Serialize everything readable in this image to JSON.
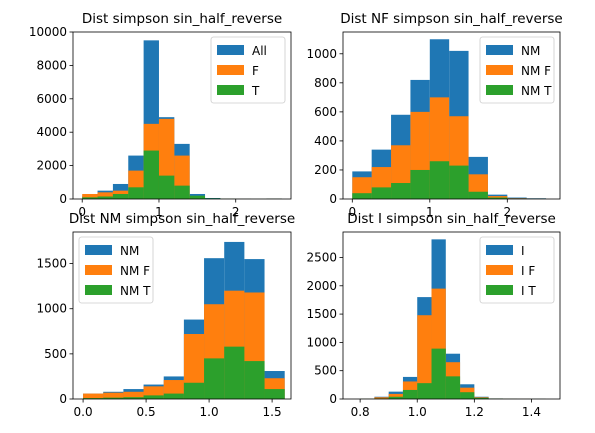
{
  "chart_data": [
    {
      "type": "bar",
      "title": "Dist simpson sin_half_reverse",
      "xlim": [
        -0.12,
        2.72
      ],
      "ylim": [
        0,
        10000
      ],
      "xticks": [
        0,
        1,
        2
      ],
      "xtick_labels": [
        "0",
        "1",
        "2"
      ],
      "yticks": [
        0,
        2000,
        4000,
        6000,
        8000,
        10000
      ],
      "ytick_labels": [
        "0",
        "2000",
        "4000",
        "6000",
        "8000",
        "10000"
      ],
      "bin_edges": [
        0,
        0.2,
        0.4,
        0.6,
        0.8,
        1.0,
        1.2,
        1.4,
        1.6,
        1.8,
        2.0,
        2.2,
        2.4,
        2.6
      ],
      "legend_position": "top-right",
      "series": [
        {
          "name": "All",
          "color": "#1f77b4",
          "values": [
            200,
            500,
            900,
            2600,
            9500,
            4900,
            3300,
            300,
            60,
            20,
            10,
            5,
            30
          ]
        },
        {
          "name": "F",
          "color": "#ff7f0e",
          "values": [
            300,
            400,
            500,
            1700,
            4500,
            4800,
            2600,
            100,
            30,
            10,
            5,
            3,
            10
          ]
        },
        {
          "name": "T",
          "color": "#2ca02c",
          "values": [
            100,
            150,
            300,
            700,
            2900,
            1400,
            800,
            200,
            40,
            10,
            5,
            2,
            10
          ]
        }
      ]
    },
    {
      "type": "bar",
      "title": "Dist NF simpson sin_half_reverse",
      "xlim": [
        -0.12,
        2.68
      ],
      "ylim": [
        0,
        1150
      ],
      "xticks": [
        0,
        1,
        2
      ],
      "xtick_labels": [
        "0",
        "1",
        "2"
      ],
      "yticks": [
        0,
        200,
        400,
        600,
        800,
        1000
      ],
      "ytick_labels": [
        "0",
        "200",
        "400",
        "600",
        "800",
        "1000"
      ],
      "bin_edges": [
        0,
        0.25,
        0.5,
        0.75,
        1.0,
        1.25,
        1.5,
        1.75,
        2.0,
        2.25,
        2.5
      ],
      "legend_position": "top-right",
      "series": [
        {
          "name": "NM",
          "color": "#1f77b4",
          "values": [
            190,
            340,
            580,
            820,
            1100,
            1020,
            290,
            30,
            10,
            5
          ]
        },
        {
          "name": "NM F",
          "color": "#ff7f0e",
          "values": [
            150,
            220,
            370,
            600,
            700,
            570,
            170,
            20,
            5,
            2
          ]
        },
        {
          "name": "NM T",
          "color": "#2ca02c",
          "values": [
            40,
            80,
            110,
            200,
            260,
            230,
            50,
            10,
            2,
            1
          ]
        }
      ]
    },
    {
      "type": "bar",
      "title": "Dist NM simpson sin_half_reverse",
      "xlim": [
        -0.08,
        1.65
      ],
      "ylim": [
        0,
        1850
      ],
      "xticks": [
        0,
        0.5,
        1.0,
        1.5
      ],
      "xtick_labels": [
        "0.0",
        "0.5",
        "1.0",
        "1.5"
      ],
      "yticks": [
        0,
        500,
        1000,
        1500
      ],
      "ytick_labels": [
        "0",
        "500",
        "1000",
        "1500"
      ],
      "bin_edges": [
        0,
        0.16,
        0.32,
        0.48,
        0.64,
        0.8,
        0.96,
        1.12,
        1.28,
        1.44,
        1.6
      ],
      "legend_position": "top-left",
      "series": [
        {
          "name": "NM",
          "color": "#1f77b4",
          "values": [
            60,
            80,
            110,
            160,
            250,
            880,
            1560,
            1740,
            1550,
            310
          ]
        },
        {
          "name": "NM F",
          "color": "#ff7f0e",
          "values": [
            60,
            70,
            80,
            140,
            210,
            720,
            1050,
            1200,
            1180,
            230
          ]
        },
        {
          "name": "NM T",
          "color": "#2ca02c",
          "values": [
            10,
            15,
            20,
            40,
            60,
            180,
            450,
            580,
            420,
            110
          ]
        }
      ]
    },
    {
      "type": "bar",
      "title": "Dist I simpson sin_half_reverse",
      "xlim": [
        0.74,
        1.5
      ],
      "ylim": [
        0,
        2950
      ],
      "xticks": [
        0.8,
        1.0,
        1.2,
        1.4
      ],
      "xtick_labels": [
        "0.8",
        "1.0",
        "1.2",
        "1.4"
      ],
      "yticks": [
        0,
        500,
        1000,
        1500,
        2000,
        2500
      ],
      "ytick_labels": [
        "0",
        "500",
        "1000",
        "1500",
        "2000",
        "2500"
      ],
      "bin_edges": [
        0.8,
        0.85,
        0.9,
        0.95,
        1.0,
        1.05,
        1.1,
        1.15,
        1.2,
        1.25,
        1.3,
        1.35,
        1.4,
        1.45
      ],
      "legend_position": "top-right",
      "series": [
        {
          "name": "I",
          "color": "#1f77b4",
          "values": [
            5,
            40,
            130,
            390,
            1800,
            2820,
            800,
            260,
            40,
            10,
            5,
            3,
            2
          ]
        },
        {
          "name": "I F",
          "color": "#ff7f0e",
          "values": [
            3,
            30,
            90,
            310,
            1480,
            1950,
            650,
            200,
            30,
            8,
            3,
            2,
            1
          ]
        },
        {
          "name": "I T",
          "color": "#2ca02c",
          "values": [
            2,
            10,
            40,
            160,
            280,
            890,
            400,
            120,
            20,
            5,
            2,
            1,
            1
          ]
        }
      ]
    }
  ]
}
